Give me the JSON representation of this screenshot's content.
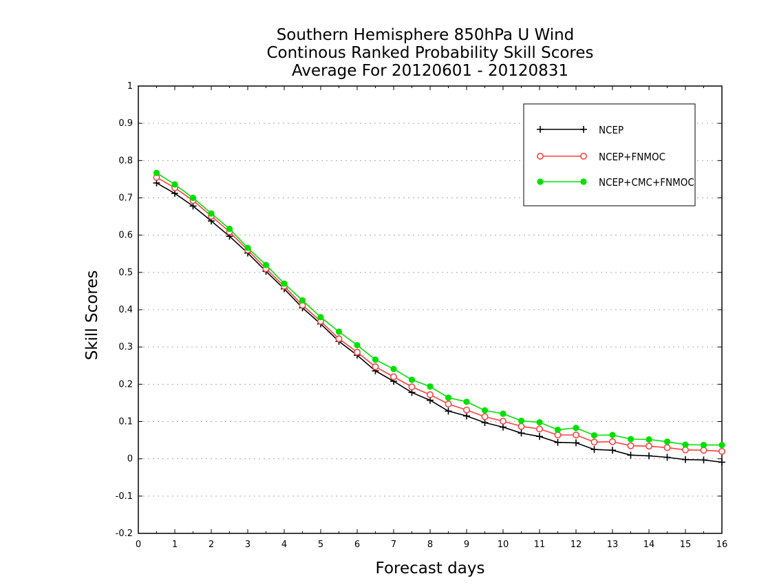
{
  "chart_data": {
    "type": "line",
    "title_lines": [
      "Southern Hemisphere 850hPa U Wind",
      "Continous Ranked Probability Skill Scores",
      "Average For 20120601 - 20120831"
    ],
    "xlabel": "Forecast days",
    "ylabel": "Skill Scores",
    "xlim": [
      0,
      16
    ],
    "ylim": [
      -0.2,
      1
    ],
    "x_ticks": [
      "0",
      "1",
      "2",
      "3",
      "4",
      "5",
      "6",
      "7",
      "8",
      "9",
      "10",
      "11",
      "12",
      "13",
      "14",
      "15",
      "16"
    ],
    "y_ticks": [
      "1",
      "0.9",
      "0.8",
      "0.7",
      "0.6",
      "0.5",
      "0.4",
      "0.3",
      "0.2",
      "0.1",
      "0",
      "-0.1",
      "-0.2"
    ],
    "grid": "horizontal dotted",
    "legend_position": "top-right",
    "x": [
      0.5,
      1,
      1.5,
      2,
      2.5,
      3,
      3.5,
      4,
      4.5,
      5,
      5.5,
      6,
      6.5,
      7,
      7.5,
      8,
      8.5,
      9,
      9.5,
      10,
      10.5,
      11,
      11.5,
      12,
      12.5,
      13,
      13.5,
      14,
      14.5,
      15,
      15.5,
      16
    ],
    "series": [
      {
        "name": "NCEP",
        "color": "#000000",
        "marker": "plus",
        "values": [
          0.74,
          0.712,
          0.678,
          0.638,
          0.597,
          0.552,
          0.503,
          0.456,
          0.405,
          0.362,
          0.315,
          0.278,
          0.236,
          0.208,
          0.178,
          0.157,
          0.128,
          0.115,
          0.097,
          0.085,
          0.069,
          0.06,
          0.044,
          0.043,
          0.025,
          0.023,
          0.01,
          0.008,
          0.004,
          -0.002,
          -0.003,
          -0.009
        ]
      },
      {
        "name": "NCEP+FNMOC",
        "color": "#ff4040",
        "marker": "open-circle",
        "values": [
          0.755,
          0.727,
          0.693,
          0.651,
          0.609,
          0.56,
          0.51,
          0.463,
          0.412,
          0.369,
          0.322,
          0.286,
          0.247,
          0.22,
          0.193,
          0.172,
          0.147,
          0.131,
          0.113,
          0.101,
          0.087,
          0.08,
          0.064,
          0.064,
          0.045,
          0.046,
          0.035,
          0.034,
          0.03,
          0.024,
          0.023,
          0.02
        ]
      },
      {
        "name": "NCEP+CMC+FNMOC",
        "color": "#00e000",
        "marker": "filled-circle",
        "values": [
          0.767,
          0.736,
          0.7,
          0.658,
          0.617,
          0.566,
          0.52,
          0.47,
          0.425,
          0.38,
          0.341,
          0.305,
          0.266,
          0.241,
          0.212,
          0.194,
          0.164,
          0.153,
          0.13,
          0.121,
          0.102,
          0.098,
          0.078,
          0.083,
          0.063,
          0.064,
          0.053,
          0.052,
          0.046,
          0.038,
          0.037,
          0.037
        ]
      }
    ]
  }
}
